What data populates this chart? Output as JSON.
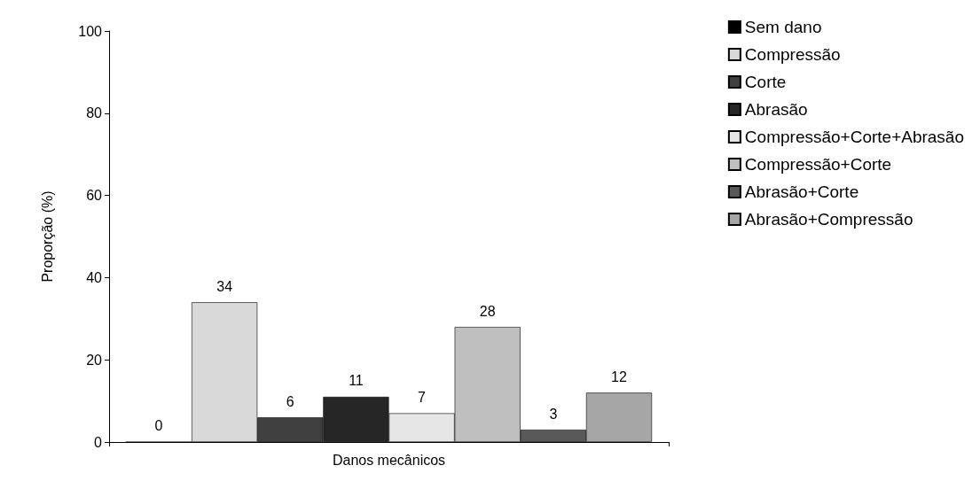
{
  "chart_data": {
    "type": "bar",
    "xlabel": "Danos mecânicos",
    "ylabel": "Proporção (%)",
    "categories": [
      null
    ],
    "series": [
      {
        "name": "Sem dano",
        "color": "#000000",
        "values": [
          0
        ]
      },
      {
        "name": "Compressão",
        "color": "#d9d9d9",
        "values": [
          34
        ]
      },
      {
        "name": "Corte",
        "color": "#404040",
        "values": [
          6
        ]
      },
      {
        "name": "Abrasão",
        "color": "#262626",
        "values": [
          11
        ]
      },
      {
        "name": "Compressão+Corte+Abrasão",
        "color": "#e6e6e6",
        "values": [
          7
        ]
      },
      {
        "name": "Compressão+Corte",
        "color": "#bfbfbf",
        "values": [
          28
        ]
      },
      {
        "name": "Abrasão+Corte",
        "color": "#595959",
        "values": [
          3
        ]
      },
      {
        "name": "Abrasão+Compressão",
        "color": "#a6a6a6",
        "values": [
          12
        ]
      }
    ],
    "ylim": [
      0,
      100
    ],
    "yticks": [
      0,
      20,
      40,
      60,
      80,
      100
    ],
    "grid": false,
    "legend": "top right",
    "data_labels": true
  }
}
